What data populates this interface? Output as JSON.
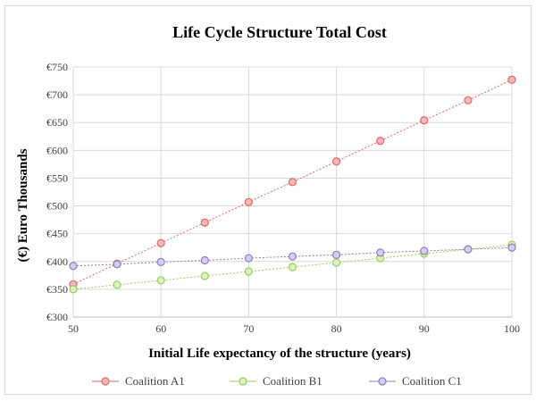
{
  "chart_data": {
    "type": "line",
    "title": "Life Cycle Structure Total Cost",
    "xlabel": "Initial Life expectancy of the structure (years)",
    "ylabel": "(€) Euro  Thousands",
    "x": [
      50,
      55,
      60,
      65,
      70,
      75,
      80,
      85,
      90,
      95,
      100
    ],
    "xlim": [
      50,
      100
    ],
    "xticks": [
      50,
      60,
      70,
      80,
      90,
      100
    ],
    "ylim": [
      300,
      750
    ],
    "yticks": [
      300,
      350,
      400,
      450,
      500,
      550,
      600,
      650,
      700,
      750
    ],
    "ytick_labels": [
      "€300",
      "€350",
      "€400",
      "€450",
      "€500",
      "€550",
      "€600",
      "€650",
      "€700",
      "€750"
    ],
    "grid": true,
    "legend_position": "bottom",
    "series": [
      {
        "name": "Coalition A1",
        "color": "#e06666",
        "fill": "#f4b8b8",
        "values": [
          359,
          396,
          433,
          470,
          507,
          543,
          580,
          617,
          654,
          690,
          727
        ]
      },
      {
        "name": "Coalition B1",
        "color": "#9bcc5a",
        "fill": "#dff0c4",
        "values": [
          350,
          358,
          366,
          374,
          382,
          390,
          398,
          406,
          414,
          422,
          430
        ]
      },
      {
        "name": "Coalition C1",
        "color": "#8e7cc3",
        "fill": "#d5cdee",
        "values": [
          392,
          395,
          399,
          402,
          406,
          409,
          412,
          416,
          419,
          422,
          425
        ]
      }
    ]
  }
}
